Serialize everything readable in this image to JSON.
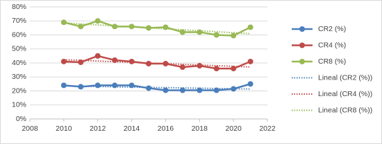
{
  "chart_data": {
    "type": "line",
    "x": [
      2010,
      2011,
      2012,
      2013,
      2014,
      2015,
      2016,
      2017,
      2018,
      2019,
      2020,
      2021
    ],
    "series": [
      {
        "name": "CR2  (%)",
        "color": "#4a7ebb",
        "values": [
          24,
          23,
          24,
          24,
          24,
          22,
          20.5,
          20.5,
          20.5,
          20.5,
          21.5,
          25
        ]
      },
      {
        "name": "CR4 (%)",
        "color": "#be4b48",
        "values": [
          41,
          40.5,
          45,
          42,
          41,
          39.5,
          39.5,
          37,
          38,
          36,
          36,
          41
        ]
      },
      {
        "name": "CR8 (%)",
        "color": "#98b954",
        "values": [
          69,
          66,
          70,
          66,
          66,
          65,
          65.5,
          62,
          62,
          60,
          59.5,
          65.5
        ]
      }
    ],
    "trendlines": [
      {
        "name": "Lineal (CR2  (%))",
        "series": 0,
        "fit": "linear",
        "color": "#4a7ebb"
      },
      {
        "name": "Lineal (CR4 (%))",
        "series": 1,
        "fit": "linear",
        "color": "#be4b48"
      },
      {
        "name": "Lineal (CR8 (%))",
        "series": 2,
        "fit": "linear",
        "color": "#98b954"
      }
    ],
    "xlim": [
      2008,
      2022
    ],
    "xticks": [
      2008,
      2010,
      2012,
      2014,
      2016,
      2018,
      2020,
      2022
    ],
    "ylim": [
      0,
      80
    ],
    "yticks": [
      {
        "value": 0,
        "label": "0%"
      },
      {
        "value": 10,
        "label": "10%"
      },
      {
        "value": 20,
        "label": "20%"
      },
      {
        "value": 30,
        "label": "30%"
      },
      {
        "value": 40,
        "label": "40%"
      },
      {
        "value": 50,
        "label": "50%"
      },
      {
        "value": 60,
        "label": "60%"
      },
      {
        "value": 70,
        "label": "70%"
      },
      {
        "value": 80,
        "label": "80%"
      }
    ],
    "grid": true,
    "legend": "right"
  }
}
